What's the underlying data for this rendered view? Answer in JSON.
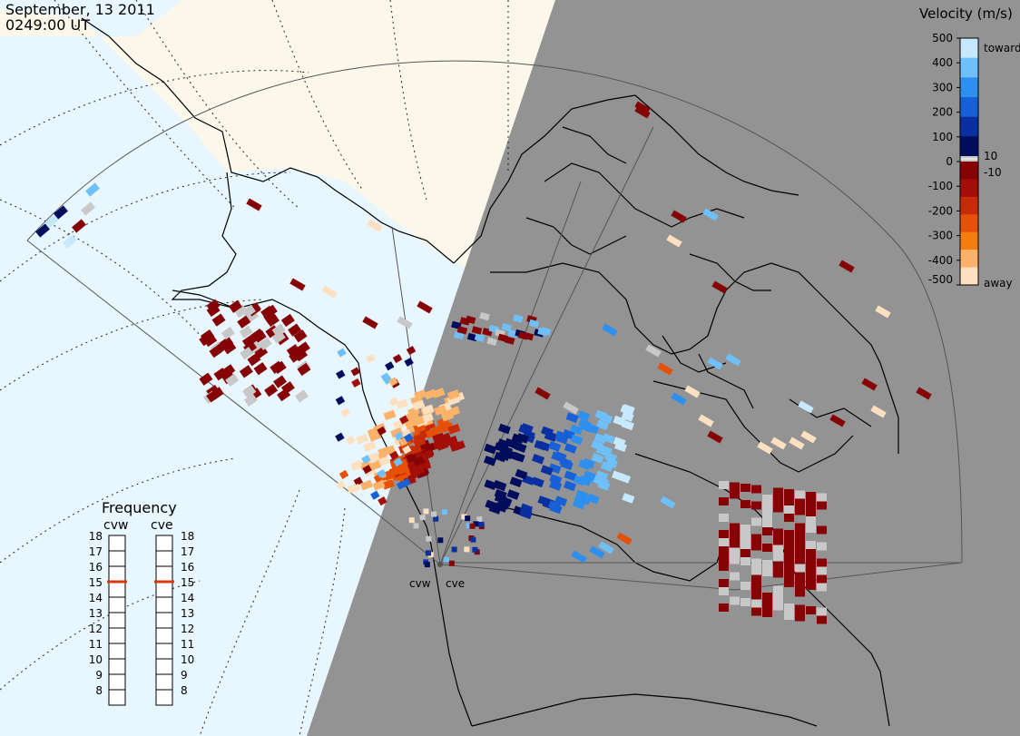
{
  "header": {
    "date": "September, 13 2011",
    "time": "0249:00 UT"
  },
  "colorbar": {
    "title": "Velocity (m/s)",
    "toward_label": "toward",
    "away_label": "away",
    "ticks": [
      "500",
      "400",
      "300",
      "200",
      "100",
      "0",
      "-100",
      "-200",
      "-300",
      "-400",
      "-500"
    ],
    "inner_ticks": [
      "10",
      "-10"
    ],
    "colors": [
      "#fde0c0",
      "#fbb26a",
      "#f47d10",
      "#e55108",
      "#c72b08",
      "#a30f08",
      "#850305",
      "#c8c8c8",
      "#000d5c",
      "#0a2fa0",
      "#1760d6",
      "#2e90ee",
      "#6fc0f8",
      "#c6e9ff"
    ]
  },
  "frequency": {
    "title": "Frequency",
    "radars": [
      "cvw",
      "cve"
    ],
    "scale": [
      "18",
      "17",
      "16",
      "15",
      "14",
      "13",
      "12",
      "11",
      "10",
      "9",
      "8"
    ],
    "cvw_mhz": 15,
    "cve_mhz": 15
  },
  "radar_sites": [
    "cvw",
    "cve"
  ],
  "colors": {
    "night": "#939393",
    "day_ocean": "#e8f6ff",
    "day_land": "#fbf7ea",
    "coast": "#000000",
    "marker": "#d7380f"
  }
}
